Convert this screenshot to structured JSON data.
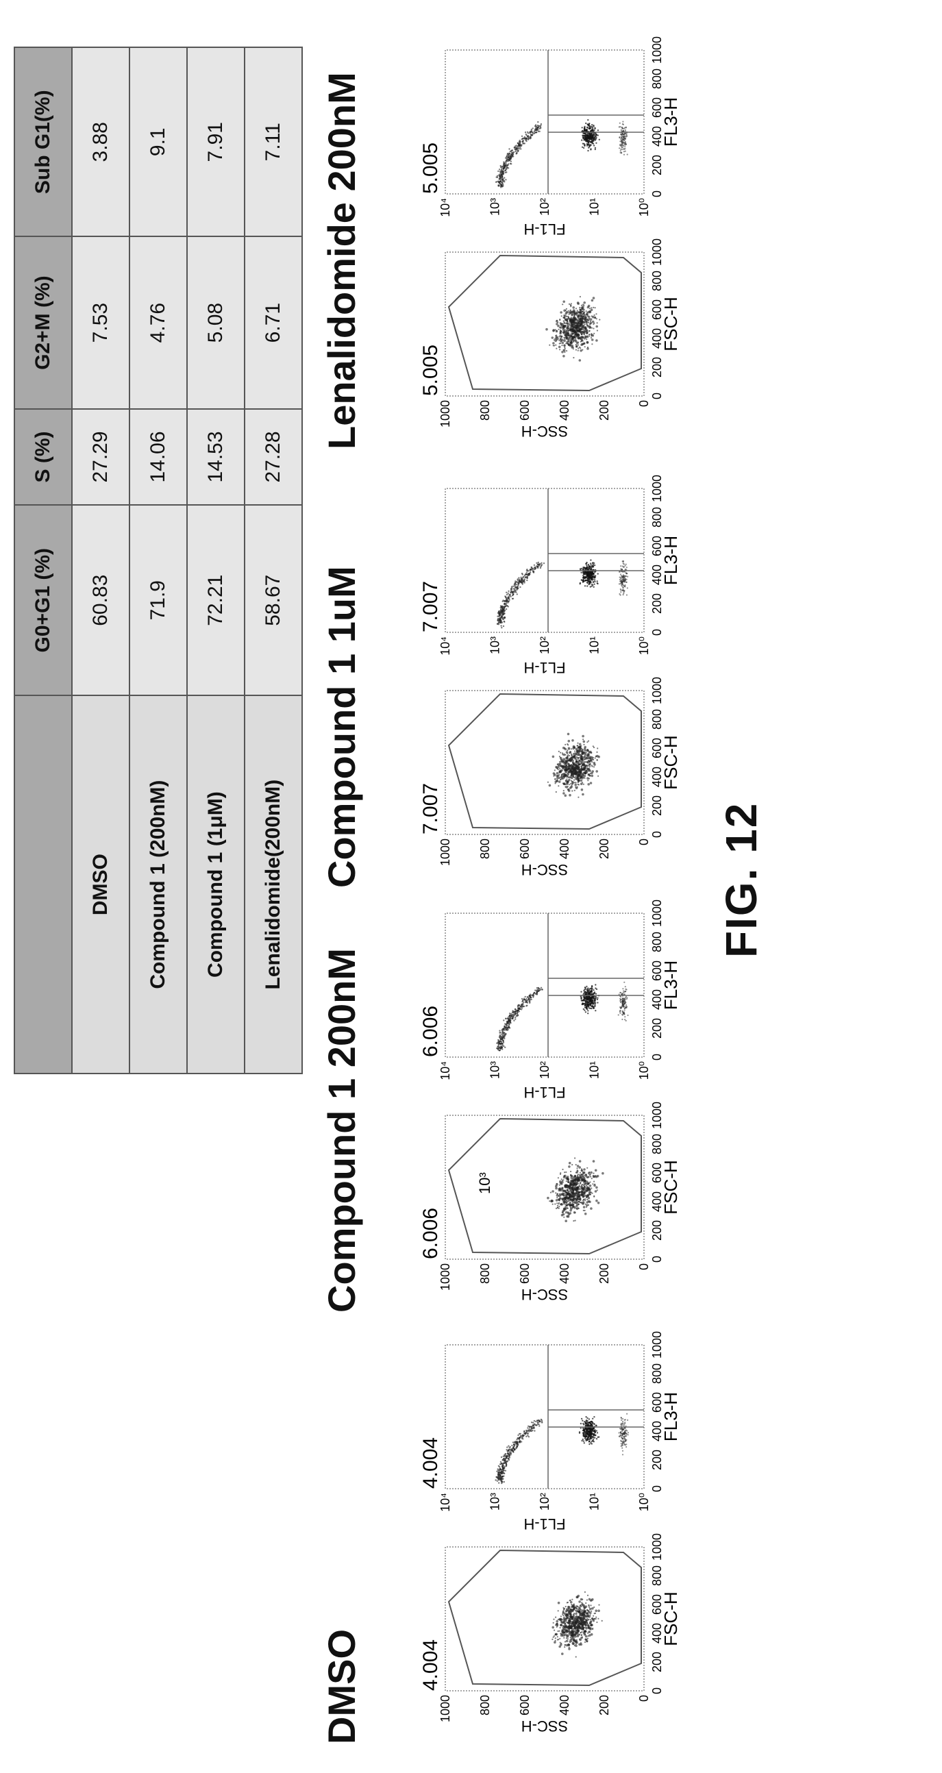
{
  "figure_title": "FIG. 12",
  "panels": [
    {
      "title": "DMSO",
      "value": "4.004"
    },
    {
      "title": "Compound 1 200nM",
      "value": "6.006"
    },
    {
      "title": "Compound 1 1uM",
      "value": "7.007"
    },
    {
      "title": "Lenalidomide 200nM",
      "value": "5.005"
    }
  ],
  "chart_data": {
    "type": "scatter",
    "scatter_axes": {
      "left": {
        "xlabel": "FSC-H",
        "ylabel": "SSC-H",
        "x_ticks": [
          "0",
          "200",
          "400",
          "600",
          "800",
          "1000"
        ],
        "y_ticks": [
          "0",
          "200",
          "400",
          "600",
          "800",
          "1000"
        ]
      },
      "right": {
        "xlabel": "FL3-H",
        "ylabel": "FL1-H",
        "x_ticks": [
          "0",
          "200",
          "400",
          "600",
          "800",
          "1000"
        ],
        "y_ticks": [
          "10⁰",
          "10¹",
          "10²",
          "10³",
          "10⁴"
        ]
      }
    },
    "stray_label": "10³",
    "table": {
      "headers": [
        "",
        "G0+G1 (%)",
        "S (%)",
        "G2+M (%)",
        "Sub G1(%)"
      ],
      "rows": [
        [
          "DMSO",
          "60.83",
          "27.29",
          "7.53",
          "3.88"
        ],
        [
          "Compound 1 (200nM)",
          "71.9",
          "14.06",
          "4.76",
          "9.1"
        ],
        [
          "Compound 1 (1μM)",
          "72.21",
          "14.53",
          "5.08",
          "7.91"
        ],
        [
          "Lenalidomide(200nM)",
          "58.67",
          "27.28",
          "6.71",
          "7.11"
        ]
      ]
    }
  }
}
